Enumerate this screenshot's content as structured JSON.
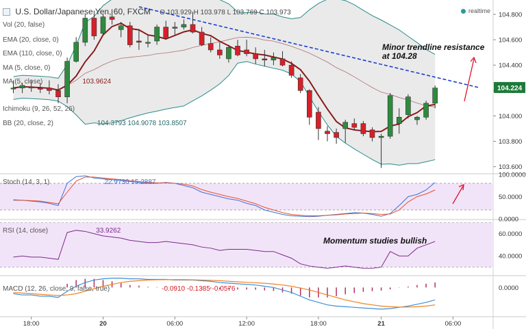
{
  "header": {
    "symbol": "U.S. Dollar/Japanese Yen, 60, FXCM",
    "open_label": "O",
    "open": "103.929",
    "high_label": "H",
    "high": "103.978",
    "low_label": "L",
    "low": "103.769",
    "close_label": "C",
    "close": "103.973",
    "realtime": "realtime"
  },
  "indicators": {
    "vol": "Vol (20, false)",
    "ema_a": "EMA (20, close, 0)",
    "ema_b": "EMA (110, close, 0)",
    "ma_a": "MA (5, close, 0)",
    "ma_b": "MA (5, close)",
    "ma_b_value": "103.9624",
    "ichimoku": "Ichimoku (9, 26, 52, 26)",
    "bb": "BB (20, close, 2)",
    "bb_values": "104.3793  104.9078  103.8507"
  },
  "annotations": {
    "trendline_text_1": "Minor trendline resistance",
    "trendline_text_2": "at 104.28",
    "momentum_text": "Momentum studies bullish"
  },
  "colors": {
    "up": "#2e8b3e",
    "down": "#d6202a",
    "ma": "#8b1a1a",
    "bb": "#2a8a8a",
    "trendline": "#1a3fd0",
    "arrow": "#e0102a",
    "stoch_k": "#3d6fd6",
    "stoch_d": "#e8502a",
    "rsi": "#7a2a8a",
    "macd": "#3d8fd6",
    "signal": "#f08020",
    "hist": "#b03060",
    "price_box": "#1f7a3a",
    "pane_fill": "#f2e4f8"
  },
  "chart_data": [
    {
      "type": "candlestick",
      "title": "U.S. Dollar/Japanese Yen, 60, FXCM",
      "x_ticks": [
        "18:00",
        "20",
        "06:00",
        "12:00",
        "18:00",
        "21",
        "06:00"
      ],
      "y_ticks": [
        "104.800",
        "104.600",
        "104.400",
        "104.200",
        "104.000",
        "103.800",
        "103.600"
      ],
      "ylim": [
        103.55,
        104.87
      ],
      "last_price": "104.224",
      "candles": [
        {
          "o": 104.22,
          "h": 104.28,
          "l": 104.18,
          "c": 104.22
        },
        {
          "o": 104.22,
          "h": 104.26,
          "l": 104.18,
          "c": 104.24
        },
        {
          "o": 104.23,
          "h": 104.28,
          "l": 104.19,
          "c": 104.22
        },
        {
          "o": 104.22,
          "h": 104.26,
          "l": 104.18,
          "c": 104.21
        },
        {
          "o": 104.22,
          "h": 104.28,
          "l": 104.17,
          "c": 104.2
        },
        {
          "o": 104.2,
          "h": 104.25,
          "l": 104.1,
          "c": 104.15
        },
        {
          "o": 104.15,
          "h": 104.46,
          "l": 104.1,
          "c": 104.43
        },
        {
          "o": 104.43,
          "h": 104.62,
          "l": 104.42,
          "c": 104.58
        },
        {
          "o": 104.58,
          "h": 104.8,
          "l": 104.55,
          "c": 104.77
        },
        {
          "o": 104.77,
          "h": 104.83,
          "l": 104.6,
          "c": 104.63
        },
        {
          "o": 104.65,
          "h": 104.8,
          "l": 104.64,
          "c": 104.78
        },
        {
          "o": 104.78,
          "h": 104.84,
          "l": 104.72,
          "c": 104.76
        },
        {
          "o": 104.68,
          "h": 104.74,
          "l": 104.62,
          "c": 104.71
        },
        {
          "o": 104.71,
          "h": 104.74,
          "l": 104.54,
          "c": 104.56
        },
        {
          "o": 104.59,
          "h": 104.68,
          "l": 104.52,
          "c": 104.58
        },
        {
          "o": 104.58,
          "h": 104.64,
          "l": 104.54,
          "c": 104.58
        },
        {
          "o": 104.59,
          "h": 104.72,
          "l": 104.56,
          "c": 104.7
        },
        {
          "o": 104.7,
          "h": 104.75,
          "l": 104.6,
          "c": 104.61
        },
        {
          "o": 104.69,
          "h": 104.74,
          "l": 104.64,
          "c": 104.7
        },
        {
          "o": 104.7,
          "h": 104.76,
          "l": 104.68,
          "c": 104.72
        },
        {
          "o": 104.72,
          "h": 104.82,
          "l": 104.65,
          "c": 104.66
        },
        {
          "o": 104.66,
          "h": 104.7,
          "l": 104.55,
          "c": 104.56
        },
        {
          "o": 104.57,
          "h": 104.62,
          "l": 104.5,
          "c": 104.52
        },
        {
          "o": 104.52,
          "h": 104.58,
          "l": 104.45,
          "c": 104.48
        },
        {
          "o": 104.45,
          "h": 104.56,
          "l": 104.42,
          "c": 104.54
        },
        {
          "o": 104.55,
          "h": 104.6,
          "l": 104.47,
          "c": 104.48
        },
        {
          "o": 104.52,
          "h": 104.6,
          "l": 104.47,
          "c": 104.49
        },
        {
          "o": 104.49,
          "h": 104.54,
          "l": 104.41,
          "c": 104.45
        },
        {
          "o": 104.45,
          "h": 104.52,
          "l": 104.39,
          "c": 104.44
        },
        {
          "o": 104.44,
          "h": 104.5,
          "l": 104.4,
          "c": 104.46
        },
        {
          "o": 104.45,
          "h": 104.51,
          "l": 104.39,
          "c": 104.4
        },
        {
          "o": 104.4,
          "h": 104.43,
          "l": 104.3,
          "c": 104.32
        },
        {
          "o": 104.3,
          "h": 104.33,
          "l": 104.18,
          "c": 104.2
        },
        {
          "o": 104.2,
          "h": 104.21,
          "l": 103.93,
          "c": 103.99
        },
        {
          "o": 104.03,
          "h": 104.07,
          "l": 103.81,
          "c": 103.9
        },
        {
          "o": 103.88,
          "h": 103.92,
          "l": 103.8,
          "c": 103.86
        },
        {
          "o": 103.87,
          "h": 103.9,
          "l": 103.78,
          "c": 103.83
        },
        {
          "o": 103.9,
          "h": 103.97,
          "l": 103.79,
          "c": 103.95
        },
        {
          "o": 103.94,
          "h": 103.98,
          "l": 103.89,
          "c": 103.91
        },
        {
          "o": 103.94,
          "h": 103.96,
          "l": 103.84,
          "c": 103.86
        },
        {
          "o": 103.89,
          "h": 103.91,
          "l": 103.8,
          "c": 103.83
        },
        {
          "o": 103.83,
          "h": 103.86,
          "l": 103.59,
          "c": 103.84
        },
        {
          "o": 103.84,
          "h": 104.18,
          "l": 103.82,
          "c": 104.16
        },
        {
          "o": 103.94,
          "h": 104.06,
          "l": 103.86,
          "c": 103.99
        },
        {
          "o": 104.01,
          "h": 104.17,
          "l": 103.98,
          "c": 104.15
        },
        {
          "o": 103.97,
          "h": 104.0,
          "l": 103.93,
          "c": 103.99
        },
        {
          "o": 103.99,
          "h": 104.12,
          "l": 103.97,
          "c": 104.1
        },
        {
          "o": 104.1,
          "h": 104.24,
          "l": 104.06,
          "c": 104.22
        }
      ]
    },
    {
      "type": "line",
      "title": "Stoch (14, 3, 1)",
      "values_label": "22.9730  15.2887",
      "y_ticks": [
        "100.0000",
        "50.0000",
        "0.0000"
      ],
      "ylim": [
        0,
        100
      ],
      "series": [
        {
          "name": "%K",
          "values": [
            42,
            42,
            40,
            38,
            35,
            30,
            80,
            95,
            97,
            92,
            90,
            88,
            86,
            84,
            82,
            80,
            80,
            82,
            80,
            75,
            70,
            60,
            55,
            50,
            45,
            42,
            35,
            30,
            20,
            15,
            10,
            7,
            6,
            5,
            6,
            8,
            10,
            12,
            14,
            13,
            10,
            6,
            12,
            30,
            50,
            55,
            65,
            82
          ]
        },
        {
          "name": "%D",
          "values": [
            43,
            42,
            41,
            40,
            37,
            34,
            60,
            85,
            94,
            94,
            92,
            90,
            88,
            86,
            84,
            82,
            81,
            81,
            80,
            78,
            74,
            66,
            60,
            55,
            50,
            46,
            40,
            34,
            26,
            20,
            14,
            10,
            8,
            7,
            7,
            8,
            9,
            11,
            12,
            13,
            12,
            10,
            11,
            20,
            38,
            50,
            56,
            65
          ]
        }
      ]
    },
    {
      "type": "line",
      "title": "RSI (14, close)",
      "values_label": "33.9262",
      "y_ticks": [
        "60.0000",
        "40.0000"
      ],
      "ylim": [
        23,
        72
      ],
      "series": [
        {
          "name": "RSI",
          "values": [
            39,
            40,
            39,
            39,
            38,
            37,
            61,
            63,
            62,
            60,
            58,
            57,
            56,
            54,
            53,
            52,
            52,
            53,
            52,
            51,
            50,
            48,
            47,
            45,
            46,
            46,
            46,
            45,
            44,
            44,
            41,
            38,
            33,
            31,
            30,
            29,
            30,
            31,
            30,
            29,
            29,
            30,
            44,
            40,
            40,
            47,
            50,
            53
          ]
        }
      ]
    },
    {
      "type": "line",
      "title": "MACD (12, 26, close, 9, false, true)",
      "values_label": "-0.0910  -0.1385  -0.0576",
      "y_ticks": [
        "0.0000"
      ],
      "ylim": [
        -0.23,
        0.09
      ],
      "x_ticks": [
        "18:00",
        "20",
        "06:00",
        "12:00",
        "18:00",
        "21",
        "06:00"
      ],
      "series": [
        {
          "name": "MACD",
          "values": [
            -0.05,
            -0.06,
            -0.06,
            -0.07,
            -0.07,
            -0.08,
            -0.03,
            0.01,
            0.04,
            0.06,
            0.07,
            0.075,
            0.075,
            0.07,
            0.07,
            0.065,
            0.065,
            0.065,
            0.06,
            0.06,
            0.06,
            0.055,
            0.05,
            0.04,
            0.035,
            0.03,
            0.025,
            0.02,
            0.01,
            0.0,
            -0.02,
            -0.04,
            -0.07,
            -0.1,
            -0.12,
            -0.14,
            -0.15,
            -0.155,
            -0.16,
            -0.165,
            -0.17,
            -0.175,
            -0.17,
            -0.16,
            -0.15,
            -0.135,
            -0.12,
            -0.1
          ]
        },
        {
          "name": "Signal",
          "values": [
            -0.04,
            -0.045,
            -0.05,
            -0.055,
            -0.06,
            -0.065,
            -0.06,
            -0.05,
            -0.03,
            -0.01,
            0.01,
            0.025,
            0.04,
            0.05,
            0.055,
            0.06,
            0.062,
            0.063,
            0.063,
            0.063,
            0.062,
            0.06,
            0.058,
            0.055,
            0.05,
            0.046,
            0.042,
            0.038,
            0.034,
            0.028,
            0.02,
            0.01,
            -0.005,
            -0.02,
            -0.04,
            -0.06,
            -0.08,
            -0.1,
            -0.115,
            -0.13,
            -0.14,
            -0.15,
            -0.155,
            -0.158,
            -0.158,
            -0.155,
            -0.15,
            -0.14
          ]
        },
        {
          "name": "Histogram",
          "values": [
            0.005,
            0.005,
            0.004,
            0.003,
            0.002,
            0.001,
            0.03,
            0.06,
            0.07,
            0.07,
            0.06,
            0.05,
            0.035,
            0.02,
            0.015,
            0.005,
            0.003,
            0.002,
            -0.003,
            -0.003,
            -0.002,
            -0.005,
            -0.008,
            -0.015,
            -0.015,
            -0.016,
            -0.017,
            -0.018,
            -0.024,
            -0.028,
            -0.04,
            -0.05,
            -0.065,
            -0.08,
            -0.08,
            -0.08,
            -0.07,
            -0.055,
            -0.045,
            -0.035,
            -0.03,
            -0.025,
            -0.015,
            -0.002,
            0.008,
            0.02,
            0.03,
            0.04
          ]
        }
      ]
    }
  ]
}
